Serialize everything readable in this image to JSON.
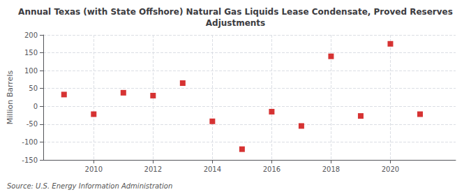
{
  "chart_data": {
    "type": "scatter",
    "title": "Annual Texas (with State Offshore) Natural Gas Liquids Lease Condensate, Proved Reserves\nAdjustments",
    "ylabel": "Million Barrels",
    "source": "Source: U.S. Energy Information Administration",
    "x": [
      2009,
      2010,
      2011,
      2012,
      2013,
      2014,
      2015,
      2016,
      2017,
      2018,
      2019,
      2020,
      2021
    ],
    "values": [
      33,
      -22,
      38,
      30,
      65,
      -42,
      -120,
      -15,
      -55,
      140,
      -27,
      175,
      -22
    ],
    "color": "#cc0000",
    "marker": "square",
    "xlim": [
      2008.3,
      2022.2
    ],
    "xticks": [
      2010,
      2012,
      2014,
      2016,
      2018,
      2020
    ],
    "ylim": [
      -150,
      200
    ],
    "yticks": [
      -150,
      -100,
      -50,
      0,
      50,
      100,
      150,
      200
    ],
    "grid": true
  }
}
